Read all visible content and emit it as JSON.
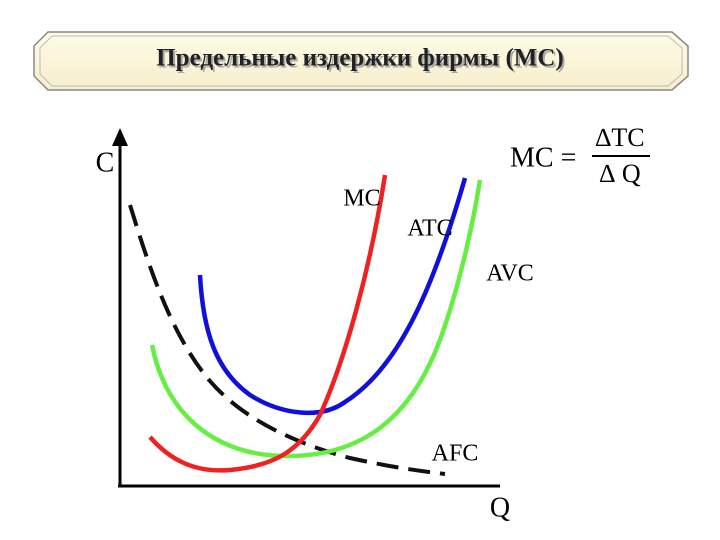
{
  "title": "Предельные издержки фирмы (MC)",
  "axes": {
    "y_label": "C",
    "x_label": "Q"
  },
  "curves": [
    {
      "label": "MC"
    },
    {
      "label": "ATC"
    },
    {
      "label": "AVC"
    },
    {
      "label": "AFC"
    }
  ],
  "formula": {
    "left": "MC =",
    "numerator": "∆TC",
    "denominator": "∆ Q"
  }
}
